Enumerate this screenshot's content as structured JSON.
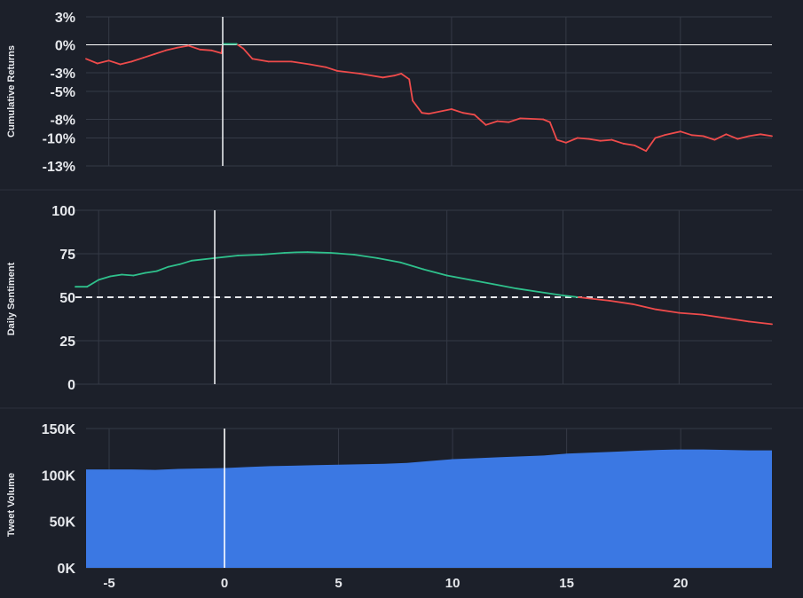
{
  "chart_data": [
    {
      "type": "line",
      "ylabel": "Cumulative Returns",
      "y_ticks": [
        3,
        0,
        -3,
        -5,
        -8,
        -10,
        -13
      ],
      "y_tick_labels": [
        "3%",
        "0%",
        "-3%",
        "-5%",
        "-8%",
        "-10%",
        "-13%"
      ],
      "ylim": [
        -13,
        3
      ],
      "xlim": [
        -6,
        24
      ],
      "event_x": 0,
      "reference_y": 0,
      "colors": {
        "above": "#2fc18c",
        "below": "#ef4b4b",
        "event_line": "#e6e8ec",
        "reference_line": "#ffffff"
      },
      "series": [
        {
          "x": [
            -6,
            -5.5,
            -5,
            -4.5,
            -4,
            -3.5,
            -3,
            -2.5,
            -2,
            -1.5,
            -1,
            -0.5,
            -0.05,
            0,
            0.6,
            0.9,
            1.3,
            2,
            3,
            3.8,
            4.5,
            5,
            6,
            7,
            7.5,
            7.8,
            8.15,
            8.3,
            8.7,
            9,
            10,
            10.5,
            11,
            11.5,
            12,
            12.5,
            13,
            14,
            14.3,
            14.6,
            15,
            15.5,
            16,
            16.5,
            17,
            17.5,
            18,
            18.5,
            18.9,
            19.3,
            20,
            20.5,
            21,
            21.5,
            22,
            22.5,
            23,
            23.5,
            24
          ],
          "y": [
            -1.5,
            -2.0,
            -1.7,
            -2.1,
            -1.8,
            -1.4,
            -1.0,
            -0.6,
            -0.3,
            -0.1,
            -0.5,
            -0.6,
            -0.9,
            0.1,
            0.1,
            -0.4,
            -1.5,
            -1.8,
            -1.8,
            -2.1,
            -2.4,
            -2.8,
            -3.1,
            -3.5,
            -3.3,
            -3.1,
            -3.7,
            -6.0,
            -7.3,
            -7.4,
            -6.9,
            -7.3,
            -7.5,
            -8.6,
            -8.2,
            -8.3,
            -7.9,
            -8.0,
            -8.3,
            -10.2,
            -10.5,
            -10.0,
            -10.1,
            -10.3,
            -10.2,
            -10.6,
            -10.8,
            -11.4,
            -10.0,
            -9.7,
            -9.3,
            -9.7,
            -9.8,
            -10.2,
            -9.6,
            -10.1,
            -9.8,
            -9.6,
            -9.8
          ]
        }
      ]
    },
    {
      "type": "line",
      "ylabel": "Daily Sentiment",
      "y_ticks": [
        100,
        75,
        50,
        25,
        0
      ],
      "y_tick_labels": [
        "100",
        "75",
        "50",
        "25",
        "0"
      ],
      "ylim": [
        0,
        100
      ],
      "xlim": [
        -6,
        24
      ],
      "event_x": 0,
      "reference_y": 50,
      "colors": {
        "above": "#2fc18c",
        "below": "#ef4b4b",
        "event_line": "#e6e8ec",
        "reference_line": "#e6e8ec"
      },
      "series": [
        {
          "x": [
            -6,
            -5.5,
            -5,
            -4.5,
            -4,
            -3.5,
            -3,
            -2.5,
            -2,
            -1.5,
            -1,
            0,
            1,
            2,
            3,
            3.5,
            4,
            5,
            6,
            7,
            8,
            9,
            10,
            11,
            12,
            13,
            14,
            15,
            16,
            17,
            18,
            19,
            20,
            21,
            22,
            23,
            24
          ],
          "y": [
            56,
            56,
            60,
            62,
            63,
            62.5,
            64,
            65,
            67.5,
            69,
            71,
            72.5,
            74,
            74.5,
            75.5,
            75.8,
            75.9,
            75.5,
            74.5,
            72.5,
            70,
            66,
            62.5,
            60,
            57.5,
            55,
            53,
            51,
            49.5,
            48,
            46,
            43,
            41,
            40,
            38,
            36,
            34.5
          ]
        }
      ]
    },
    {
      "type": "area",
      "ylabel": "Tweet Volume",
      "y_ticks": [
        150000,
        100000,
        50000,
        0
      ],
      "y_tick_labels": [
        "150K",
        "100K",
        "50K",
        "0K"
      ],
      "ylim": [
        0,
        150000
      ],
      "xlim": [
        -6,
        24
      ],
      "event_x": 0,
      "x_ticks": [
        -5,
        0,
        5,
        10,
        15,
        20
      ],
      "x_tick_labels": [
        "-5",
        "0",
        "5",
        "10",
        "15",
        "20"
      ],
      "colors": {
        "fill": "#3b78e3",
        "event_line": "#ffffff"
      },
      "series": [
        {
          "x": [
            -6,
            -5,
            -4,
            -3,
            -2,
            -1,
            0,
            1,
            2,
            3,
            4,
            5,
            6,
            7,
            8,
            9,
            10,
            11,
            12,
            13,
            14,
            15,
            16,
            17,
            18,
            19,
            20,
            21,
            22,
            23,
            24
          ],
          "y": [
            106000,
            106000,
            106000,
            105500,
            106500,
            107000,
            107500,
            108500,
            109500,
            110000,
            110500,
            111000,
            111500,
            112000,
            113000,
            115000,
            117000,
            118000,
            119000,
            120000,
            121000,
            123000,
            124000,
            125000,
            126000,
            127000,
            127500,
            127500,
            127000,
            126500,
            126500
          ]
        }
      ]
    }
  ]
}
